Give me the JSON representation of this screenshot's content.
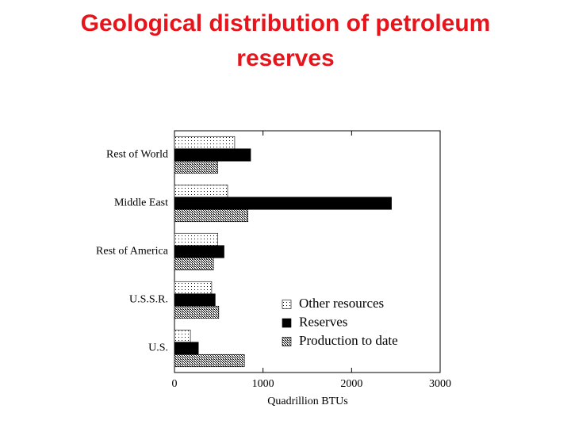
{
  "chart_data": {
    "type": "barh",
    "title": "Geological distribution of petroleum reserves",
    "categories": [
      "Rest of World",
      "Middle East",
      "Rest of America",
      "U.S.S.R.",
      "U.S."
    ],
    "series": [
      {
        "name": "Other resources",
        "color": "#000000",
        "pattern": "dots",
        "values": [
          680,
          600,
          490,
          420,
          180
        ]
      },
      {
        "name": "Reserves",
        "color": "#000000",
        "pattern": "solid",
        "values": [
          860,
          2450,
          560,
          460,
          270
        ]
      },
      {
        "name": "Production to date",
        "color": "#000000",
        "pattern": "hatch",
        "values": [
          490,
          830,
          440,
          500,
          790
        ]
      }
    ],
    "xlabel": "Quadrillion BTUs",
    "xlim": [
      0,
      3000
    ],
    "xticks": [
      0,
      1000,
      2000,
      3000
    ],
    "grid": false,
    "legend": "lower right"
  }
}
